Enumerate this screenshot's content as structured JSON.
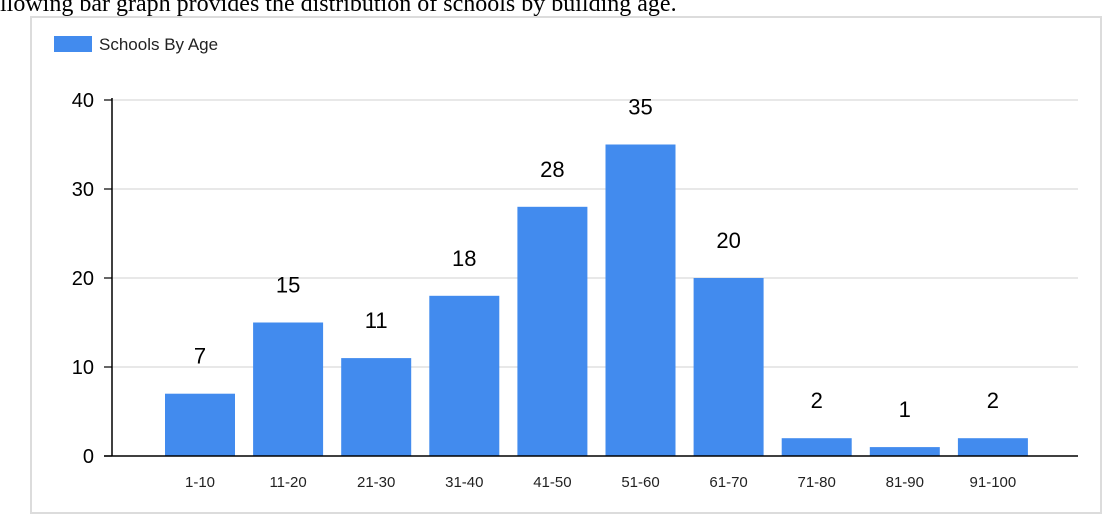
{
  "caption": "llowing bar graph provides the distribution of schools by building age.",
  "colors": {
    "bar": "#428bee",
    "grid": "#d9d9d9",
    "axis": "#000000"
  },
  "chart_data": {
    "type": "bar",
    "categories": [
      "1-10",
      "11-20",
      "21-30",
      "31-40",
      "41-50",
      "51-60",
      "61-70",
      "71-80",
      "81-90",
      "91-100"
    ],
    "series": [
      {
        "name": "Schools By Age",
        "values": [
          7,
          15,
          11,
          18,
          28,
          35,
          20,
          2,
          1,
          2
        ]
      }
    ],
    "legend": "top-left",
    "yticks": [
      0,
      10,
      20,
      30,
      40
    ],
    "ylim": [
      0,
      40
    ],
    "grid": true,
    "data_labels": true
  }
}
